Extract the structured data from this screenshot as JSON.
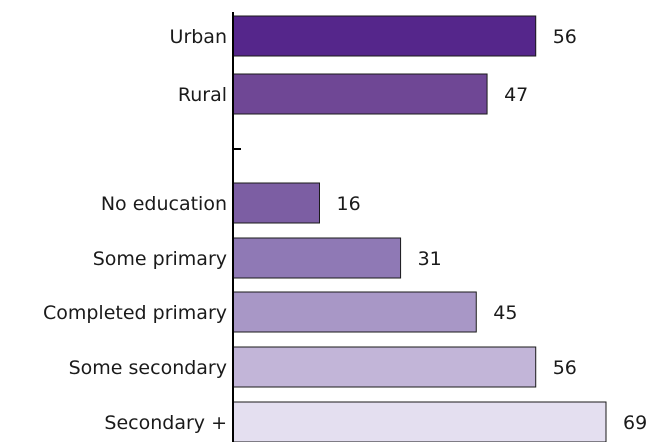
{
  "chart_data": {
    "type": "bar",
    "orientation": "horizontal",
    "categories": [
      "Urban",
      "Rural",
      "",
      "No education",
      "Some primary",
      "Completed primary",
      "Some secondary",
      "Secondary +"
    ],
    "values": [
      56,
      47,
      null,
      16,
      31,
      45,
      56,
      69
    ],
    "value_labels": [
      "56",
      "47",
      "",
      "16",
      "31",
      "45",
      "56",
      "69"
    ],
    "colors": [
      "#55268b",
      "#6f4795",
      "",
      "#7c5ea3",
      "#8f79b5",
      "#a897c6",
      "#c2b5d8",
      "#e4dff0"
    ],
    "xlim": [
      0,
      69
    ],
    "grid": false,
    "legend": "none"
  }
}
